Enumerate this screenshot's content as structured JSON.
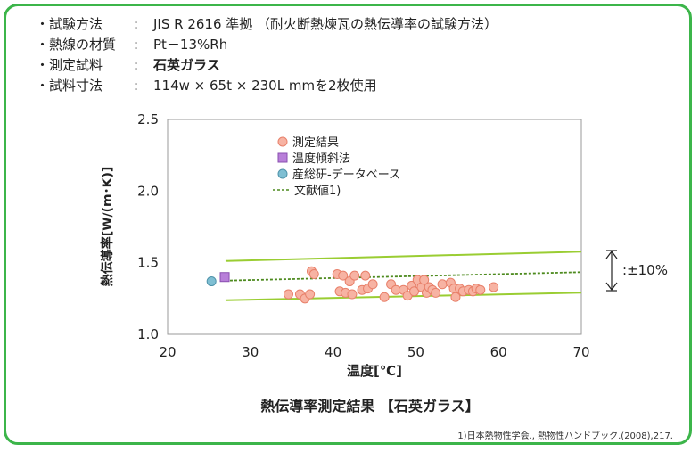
{
  "info": [
    {
      "label": "・試験方法",
      "sep": ":",
      "value": "JIS R 2616 準拠 （耐火断熱煉瓦の熱伝導率の試験方法）",
      "bold": false
    },
    {
      "label": "・熱線の材質",
      "sep": ":",
      "value": "Pt－13%Rh",
      "bold": false
    },
    {
      "label": "・測定試料",
      "sep": ":",
      "value": "石英ガラス",
      "bold": true
    },
    {
      "label": "・試料寸法",
      "sep": ":",
      "value": "114w × 65t × 230L mmを2枚使用",
      "bold": false
    }
  ],
  "colors": {
    "frame": "#3cb54a",
    "measured": "#f7b3a3",
    "measured_edge": "#e8806a",
    "gradient": "#b87fd9",
    "gradient_edge": "#8a4fb0",
    "aist": "#7fbfd3",
    "aist_edge": "#4f93aa",
    "literature": "#4d8a1e",
    "band": "#9acd32"
  },
  "chart_data": {
    "type": "scatter",
    "title": "熱伝導率測定結果 【石英ガラス】",
    "xlabel": "温度[℃]",
    "ylabel": "熱伝導率[W/(m･K)]",
    "xlim": [
      20,
      70
    ],
    "ylim": [
      1.0,
      2.5
    ],
    "xticks": [
      "20",
      "30",
      "40",
      "50",
      "60",
      "70"
    ],
    "yticks": [
      "1.0",
      "1.5",
      "2.0",
      "2.5"
    ],
    "grid": false,
    "legend_position": "top-left",
    "band_label": ":±10%",
    "footnote": "1)日本熱物性学会., 熱物性ハンドブック.(2008),217.",
    "series": [
      {
        "name": "測定結果",
        "kind": "circle",
        "points": [
          [
            34.6,
            1.28
          ],
          [
            36.0,
            1.28
          ],
          [
            36.6,
            1.25
          ],
          [
            37.2,
            1.28
          ],
          [
            37.4,
            1.44
          ],
          [
            37.7,
            1.42
          ],
          [
            40.5,
            1.42
          ],
          [
            40.8,
            1.3
          ],
          [
            41.2,
            1.41
          ],
          [
            41.5,
            1.29
          ],
          [
            42.0,
            1.37
          ],
          [
            42.3,
            1.28
          ],
          [
            42.6,
            1.41
          ],
          [
            43.5,
            1.31
          ],
          [
            43.9,
            1.41
          ],
          [
            44.2,
            1.32
          ],
          [
            44.8,
            1.35
          ],
          [
            46.2,
            1.26
          ],
          [
            47.0,
            1.35
          ],
          [
            47.6,
            1.31
          ],
          [
            48.5,
            1.31
          ],
          [
            49.0,
            1.27
          ],
          [
            49.5,
            1.34
          ],
          [
            49.8,
            1.3
          ],
          [
            50.2,
            1.38
          ],
          [
            50.7,
            1.33
          ],
          [
            51.0,
            1.38
          ],
          [
            51.3,
            1.29
          ],
          [
            51.6,
            1.33
          ],
          [
            52.0,
            1.31
          ],
          [
            52.4,
            1.29
          ],
          [
            53.2,
            1.35
          ],
          [
            54.2,
            1.36
          ],
          [
            54.6,
            1.32
          ],
          [
            54.8,
            1.26
          ],
          [
            55.3,
            1.32
          ],
          [
            55.7,
            1.3
          ],
          [
            56.4,
            1.31
          ],
          [
            56.9,
            1.3
          ],
          [
            57.3,
            1.32
          ],
          [
            57.8,
            1.31
          ],
          [
            59.4,
            1.33
          ]
        ]
      },
      {
        "name": "温度傾斜法",
        "kind": "square",
        "points": [
          [
            26.9,
            1.4
          ]
        ]
      },
      {
        "name": "産総研-データベース",
        "kind": "circle",
        "points": [
          [
            25.3,
            1.37
          ]
        ]
      },
      {
        "name": "文献値1)",
        "kind": "line",
        "points": [
          [
            27.0,
            1.375
          ],
          [
            70.0,
            1.434
          ]
        ]
      }
    ],
    "bands": [
      {
        "points": [
          [
            27.0,
            1.512
          ],
          [
            70.0,
            1.577
          ]
        ]
      },
      {
        "points": [
          [
            27.0,
            1.238
          ],
          [
            70.0,
            1.291
          ]
        ]
      }
    ]
  }
}
